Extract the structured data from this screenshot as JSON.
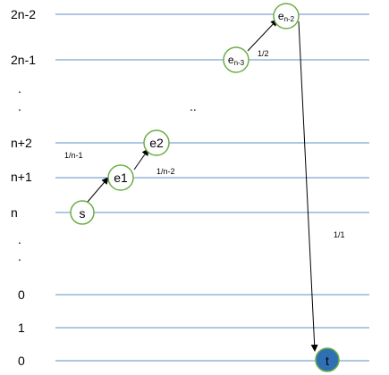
{
  "rows": [
    "2n-2",
    "2n-1",
    ".",
    ".",
    "n+2",
    "n+1",
    "n",
    ".",
    ".",
    "0",
    "1",
    "0"
  ],
  "nodes": {
    "s": "s",
    "e1": "e1",
    "e2": "e2",
    "en3": {
      "base": "e",
      "sub": "n-3"
    },
    "en2": {
      "base": "e",
      "sub": "n-2"
    },
    "t": "t"
  },
  "probabilities": {
    "p_1_n_1": "1/n-1",
    "p_1_n_2": "1/n-2",
    "p_1_2": "1/2",
    "p_1_1": "1/1"
  },
  "ellipsis": "..",
  "colors": {
    "grid_line": "#5b8fc9",
    "node_stroke": "#6aae45",
    "target_fill": "#2f6fb3",
    "arrow": "#000000"
  }
}
